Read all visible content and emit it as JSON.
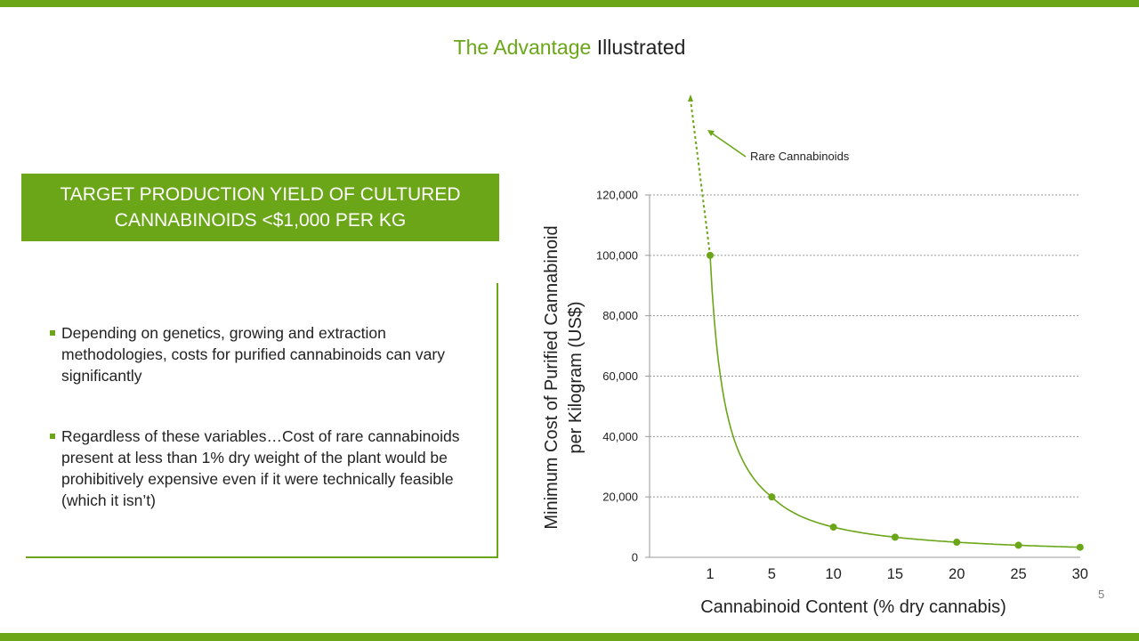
{
  "slide": {
    "title_accent": "The Advantage",
    "title_rest": "Illustrated",
    "banner_line1": "TARGET PRODUCTION YIELD OF CULTURED",
    "banner_line2": "CANNABINOIDS  <$1,000 PER KG",
    "bullets": [
      "Depending on genetics, growing and extraction methodologies, costs for purified cannabinoids can vary significantly",
      "Regardless of these variables…Cost of rare cannabinoids present at less than 1% dry weight of the plant would be prohibitively expensive even if it were technically feasible (which it isn’t)"
    ],
    "page_number": "5",
    "colors": {
      "accent": "#6aa617",
      "text": "#222222",
      "grid": "#9a9a9a"
    }
  },
  "chart_data": {
    "type": "scatter",
    "title": "",
    "xlabel": "Cannabinoid Content (% dry cannabis)",
    "ylabel_line1": "Minimum Cost of Purified Cannabinoid",
    "ylabel_line2": "per Kilogram (US$)",
    "categories": [
      "1",
      "5",
      "10",
      "15",
      "20",
      "25",
      "30"
    ],
    "series": [
      {
        "x": [
          1,
          5,
          10,
          15,
          20,
          25,
          30
        ],
        "values": [
          100000,
          20000,
          10000,
          6667,
          5000,
          4000,
          3333
        ]
      }
    ],
    "yticks": [
      "0",
      "20,000",
      "40,000",
      "60,000",
      "80,000",
      "100,000",
      "120,000"
    ],
    "ylim": [
      0,
      120000
    ],
    "grid": true,
    "trend": "smooth curve through points; dotted extension above 100,000 toward x < 1",
    "annotation": "Rare Cannabinoids"
  }
}
